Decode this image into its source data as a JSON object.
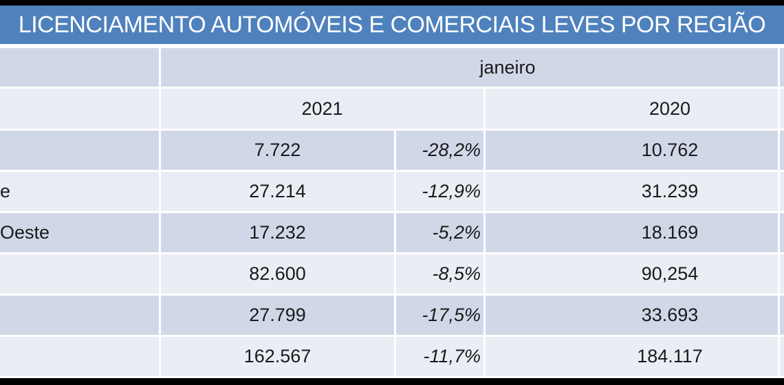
{
  "title": "LICENCIAMENTO AUTOMÓVEIS E COMERCIAIS LEVES POR REGIÃO",
  "headers": {
    "month": "janeiro",
    "year_left": "2021",
    "year_right": "2020"
  },
  "rows": [
    {
      "label_fragment": "",
      "value_2021": "7.722",
      "pct_change": "-28,2%",
      "value_2020": "10.762"
    },
    {
      "label_fragment": "e",
      "value_2021": "27.214",
      "pct_change": "-12,9%",
      "value_2020": "31.239"
    },
    {
      "label_fragment": "Oeste",
      "value_2021": "17.232",
      "pct_change": "-5,2%",
      "value_2020": "18.169"
    },
    {
      "label_fragment": "",
      "value_2021": "82.600",
      "pct_change": "-8,5%",
      "value_2020": "90,254"
    },
    {
      "label_fragment": "",
      "value_2021": "27.799",
      "pct_change": "-17,5%",
      "value_2020": "33.693"
    },
    {
      "label_fragment": "",
      "value_2021": "162.567",
      "pct_change": "-11,7%",
      "value_2020": "184.117"
    }
  ],
  "colors": {
    "title_bg": "#4F81BD",
    "title_text": "#FFFFFF",
    "band_dark": "#D0D8E8",
    "band_light": "#E9EDF4",
    "grid_lines": "#FFFFFF",
    "frame_bands": "#000000",
    "cell_text": "#1A1A1A"
  },
  "chart_data": {
    "type": "table",
    "title": "LICENCIAMENTO AUTOMÓVEIS E COMERCIAIS LEVES POR REGIÃO",
    "column_group_header": "janeiro",
    "year_columns": [
      "2021",
      "2020"
    ],
    "rows": [
      {
        "region_label_visible": "",
        "licensed_2021": "7.722",
        "change_pct": "-28,2%",
        "licensed_2020": "10.762"
      },
      {
        "region_label_visible": "e",
        "licensed_2021": "27.214",
        "change_pct": "-12,9%",
        "licensed_2020": "31.239"
      },
      {
        "region_label_visible": "Oeste",
        "licensed_2021": "17.232",
        "change_pct": "-5,2%",
        "licensed_2020": "18.169"
      },
      {
        "region_label_visible": "",
        "licensed_2021": "82.600",
        "change_pct": "-8,5%",
        "licensed_2020": "90,254"
      },
      {
        "region_label_visible": "",
        "licensed_2021": "27.799",
        "change_pct": "-17,5%",
        "licensed_2020": "33.693"
      },
      {
        "region_label_visible": "",
        "licensed_2021": "162.567",
        "change_pct": "-11,7%",
        "licensed_2020": "184.117"
      }
    ],
    "layout": {
      "banded_rows": true,
      "percent_column_style": "italic, right-aligned",
      "value_alignment": "center",
      "table_cropped_left": true,
      "table_cropped_right": true
    }
  }
}
